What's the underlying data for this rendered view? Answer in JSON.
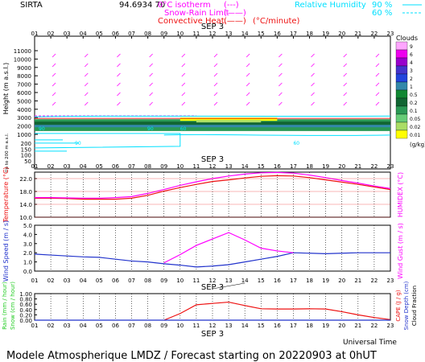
{
  "header": {
    "station": "SIRTA",
    "coords": "94.6934 70",
    "isotherm_label": "0°C isotherm",
    "snow_rain_label": "Snow-Rain Limit",
    "convective_label": "Convective Heat.",
    "convective_unit": "(°C/minute)",
    "rh_label": "Relative Humidity",
    "rh_90": "90 %",
    "rh_60": "60 %",
    "dash_sym": "(---)",
    "solid_sym": "(——)"
  },
  "colors": {
    "magenta": "#ff00ff",
    "cyan": "#00e0ff",
    "red": "#ee1111",
    "blue": "#2233cc",
    "green": "#22cc22",
    "gray": "#888888"
  },
  "date_label": "SEP  3",
  "hours": [
    "01",
    "02",
    "03",
    "04",
    "05",
    "06",
    "07",
    "08",
    "09",
    "10",
    "11",
    "12",
    "13",
    "14",
    "15",
    "16",
    "17",
    "18",
    "19",
    "20",
    "21",
    "22",
    "23"
  ],
  "footer": {
    "universal_time": "Universal Time",
    "title": "Modele Atmospherique LMDZ / Forecast starting on 20220903 at 0hUT"
  },
  "clouds_legend": {
    "title": "Clouds",
    "unit": "(g/kg)",
    "levels": [
      "9",
      "6",
      "4",
      "3",
      "2",
      "1",
      "0.5",
      "0.2",
      "0.1",
      "0.05",
      "0.02",
      "0.01"
    ],
    "colors": [
      "#ffa6ff",
      "#ee00ee",
      "#9900cc",
      "#4433cc",
      "#2244dd",
      "#3388aa",
      "#118833",
      "#116633",
      "#2a9955",
      "#66cc77",
      "#aadd66",
      "#ffff00"
    ]
  },
  "chart_data": [
    {
      "type": "heatmap",
      "name_top": "height-cloud-section",
      "ylabel": "Height (m a.s.l.)",
      "ylabel_low": "Up to 200 m a.s.l.",
      "y_ticks_upper": [
        "11000",
        "10000",
        "9000",
        "8000",
        "7000",
        "6000",
        "5000",
        "4000",
        "3000",
        "2000",
        "1000"
      ],
      "y_ticks_lower": [
        "200",
        "150",
        "100",
        "50"
      ],
      "cloud_layer": {
        "base_m": 1300,
        "top_m": 3000,
        "main_color": "#116633"
      },
      "rh_labels": [
        "90",
        "90",
        "90",
        "60",
        "60"
      ],
      "isotherm_m": 3200
    },
    {
      "type": "line",
      "name_top": "temperature-humidex",
      "ylabel": "Temperature (°C)",
      "y2label": "HUMIDEX (°C)",
      "y_ticks": [
        "22.0",
        "18.0",
        "14.0",
        "10.0"
      ],
      "ylim": [
        10,
        24
      ],
      "x": [
        1,
        2,
        3,
        4,
        5,
        6,
        7,
        8,
        9,
        10,
        11,
        12,
        13,
        14,
        15,
        16,
        17,
        18,
        19,
        20,
        21,
        22,
        23
      ],
      "series": [
        {
          "key": "temperature",
          "color": "#ee1111",
          "values": [
            15.9,
            15.9,
            15.8,
            15.6,
            15.6,
            15.6,
            15.9,
            16.8,
            18.1,
            19.2,
            20.2,
            21.1,
            21.6,
            22.2,
            22.7,
            22.9,
            22.8,
            22.3,
            21.6,
            20.9,
            20.2,
            19.4,
            18.6
          ]
        },
        {
          "key": "humidex",
          "color": "#ff00ff",
          "values": [
            16.1,
            16.1,
            16.0,
            15.9,
            15.9,
            16.1,
            16.4,
            17.4,
            18.6,
            19.9,
            21.0,
            22.0,
            22.8,
            23.4,
            23.8,
            23.9,
            23.7,
            23.1,
            22.3,
            21.4,
            20.6,
            19.7,
            18.9
          ]
        }
      ]
    },
    {
      "type": "line",
      "name_top": "wind",
      "ylabel": "Wind Speed (m / s)",
      "y2label": "Wind Gust (m / s)",
      "y_ticks": [
        "5.0",
        "4.0",
        "3.0",
        "2.0",
        "1.0",
        "0.0"
      ],
      "ylim": [
        0,
        5
      ],
      "x": [
        1,
        2,
        3,
        4,
        5,
        6,
        7,
        8,
        9,
        10,
        11,
        12,
        13,
        14,
        15,
        16,
        17,
        18,
        19,
        20,
        21,
        22,
        23
      ],
      "series": [
        {
          "key": "wind_speed",
          "color": "#2233cc",
          "values": [
            1.85,
            1.75,
            1.65,
            1.55,
            1.5,
            1.3,
            1.1,
            1.0,
            0.8,
            0.65,
            0.45,
            0.55,
            0.7,
            1.0,
            1.3,
            1.6,
            2.0,
            1.95,
            1.9,
            1.95,
            2.0,
            2.0,
            2.0
          ]
        },
        {
          "key": "wind_gust",
          "color": "#ff00ff",
          "values": [
            null,
            null,
            null,
            null,
            null,
            null,
            null,
            null,
            0.9,
            1.8,
            2.8,
            3.5,
            4.2,
            3.4,
            2.5,
            2.2,
            2.0,
            null,
            null,
            null,
            null,
            null,
            null
          ]
        }
      ]
    },
    {
      "type": "line",
      "name_top": "precipitation",
      "ylabel": "Rain (mm / hour)",
      "ylabel2": "Snow (cm / hour)",
      "y2label": "CAPE (J / g)",
      "y2label_b": "Snow Depth (cm)",
      "y2label_c": "Cloud Fraction",
      "y_ticks": [
        "1.00",
        "0.80",
        "0.60",
        "0.40",
        "0.20",
        "0.00"
      ],
      "ylim": [
        0,
        1
      ],
      "x": [
        1,
        2,
        3,
        4,
        5,
        6,
        7,
        8,
        9,
        10,
        11,
        12,
        13,
        14,
        15,
        16,
        17,
        18,
        19,
        20,
        21,
        22,
        23
      ],
      "series": [
        {
          "key": "cape",
          "color": "#ee1111",
          "values": [
            null,
            null,
            null,
            null,
            null,
            null,
            null,
            null,
            0.0,
            0.25,
            0.58,
            0.63,
            0.68,
            0.55,
            0.43,
            0.42,
            0.42,
            0.43,
            0.42,
            0.32,
            0.2,
            0.1,
            0.02
          ]
        },
        {
          "key": "rain",
          "color": "#2233cc",
          "values": [
            0,
            0,
            0,
            0,
            0,
            0,
            0,
            0,
            0,
            0,
            0,
            0,
            0,
            0,
            0,
            0,
            0,
            0,
            0,
            0,
            0,
            0,
            0
          ]
        }
      ]
    }
  ]
}
